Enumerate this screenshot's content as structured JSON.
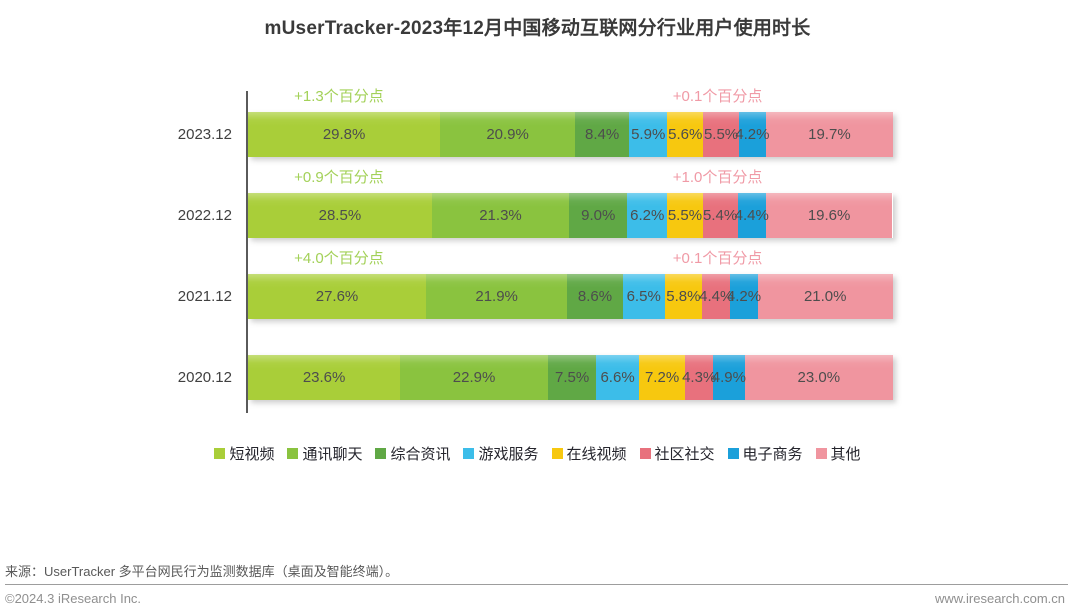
{
  "chart_data": {
    "type": "bar",
    "variant": "horizontal-stacked",
    "title": "mUserTracker-2023年12月中国移动互联网分行业用户使用时长",
    "unit": "%",
    "xlim": [
      0,
      100
    ],
    "grid": false,
    "legend_position": "bottom",
    "categories": [
      "2023.12",
      "2022.12",
      "2021.12",
      "2020.12"
    ],
    "series": [
      {
        "name": "短视频",
        "color": "#a9ce39",
        "values": [
          29.8,
          28.5,
          27.6,
          23.6
        ]
      },
      {
        "name": "通讯聊天",
        "color": "#8ac33f",
        "values": [
          20.9,
          21.3,
          21.9,
          22.9
        ]
      },
      {
        "name": "综合资讯",
        "color": "#60a845",
        "values": [
          8.4,
          9.0,
          8.6,
          7.5
        ]
      },
      {
        "name": "游戏服务",
        "color": "#3cbde9",
        "values": [
          5.9,
          6.2,
          6.5,
          6.6
        ]
      },
      {
        "name": "在线视频",
        "color": "#f7c80f",
        "values": [
          5.6,
          5.5,
          5.8,
          7.2
        ]
      },
      {
        "name": "社区社交",
        "color": "#e8717d",
        "values": [
          5.5,
          5.4,
          4.4,
          4.3
        ]
      },
      {
        "name": "电子商务",
        "color": "#1ba0da",
        "values": [
          4.2,
          4.4,
          4.2,
          4.9
        ]
      },
      {
        "name": "其他",
        "color": "#f0959f",
        "values": [
          19.7,
          19.6,
          21.0,
          23.0
        ]
      }
    ],
    "annotations": [
      {
        "left": {
          "text": "+1.3个百分点",
          "color": "#a3d158"
        },
        "right": {
          "text": "+0.1个百分点",
          "color": "#f09aa6"
        }
      },
      {
        "left": {
          "text": "+0.9个百分点",
          "color": "#a3d158"
        },
        "right": {
          "text": "+1.0个百分点",
          "color": "#f09aa6"
        }
      },
      {
        "left": {
          "text": "+4.0个百分点",
          "color": "#a3d158"
        },
        "right": {
          "text": "+0.1个百分点",
          "color": "#f09aa6"
        }
      },
      null
    ]
  },
  "footer": {
    "source": "来源：UserTracker 多平台网民行为监测数据库（桌面及智能终端）。",
    "copyright": "©2024.3 iResearch Inc.",
    "website": "www.iresearch.com.cn"
  }
}
